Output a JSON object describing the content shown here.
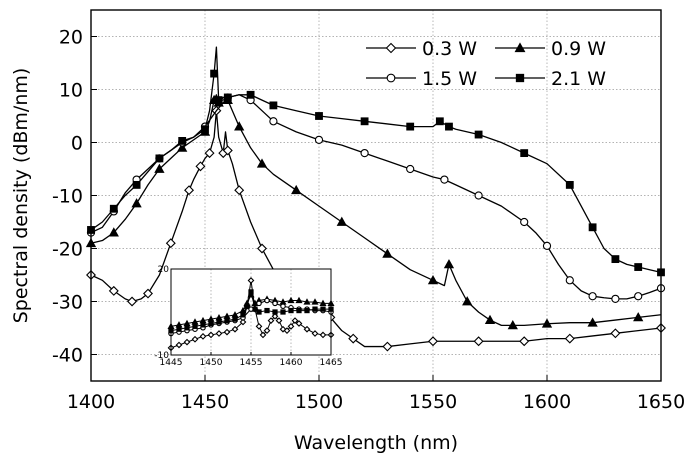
{
  "chart_data": [
    {
      "type": "line",
      "title": "",
      "xlabel": "Wavelength (nm)",
      "ylabel": "Spectral density (dBm/nm)",
      "xlim": [
        1400,
        1650
      ],
      "ylim": [
        -45,
        25
      ],
      "xticks": [
        "1400",
        "1450",
        "1500",
        "1550",
        "1600",
        "1650"
      ],
      "yticks": [
        "-40",
        "-30",
        "-20",
        "-10",
        "0",
        "10",
        "20"
      ],
      "grid": true,
      "legend": "top-right",
      "series": [
        {
          "name": "0.3 W",
          "marker": "diamond-open",
          "x": [
            1400,
            1405,
            1410,
            1415,
            1418,
            1422,
            1425,
            1430,
            1435,
            1440,
            1443,
            1445,
            1448,
            1450,
            1452,
            1454,
            1455,
            1456,
            1458,
            1459,
            1460,
            1462,
            1465,
            1470,
            1475,
            1480,
            1485,
            1490,
            1495,
            1500,
            1502,
            1503,
            1505,
            1510,
            1515,
            1520,
            1530,
            1540,
            1550,
            1560,
            1570,
            1580,
            1590,
            1600,
            1610,
            1620,
            1630,
            1640,
            1650
          ],
          "y": [
            -25,
            -26,
            -28,
            -29.5,
            -30,
            -29.5,
            -28.5,
            -25,
            -19,
            -13,
            -9,
            -7,
            -4.5,
            -3,
            -2,
            1,
            6,
            1,
            -2,
            2,
            -1.5,
            -4,
            -9,
            -15,
            -20,
            -24,
            -27,
            -29,
            -31,
            -32,
            -29.5,
            -30,
            -33,
            -35.5,
            -37,
            -38.5,
            -38.5,
            -38,
            -37.5,
            -37.5,
            -37.5,
            -37.5,
            -37.5,
            -37,
            -37,
            -36.5,
            -36,
            -35.5,
            -35
          ]
        },
        {
          "name": "0.9 W",
          "marker": "triangle-filled",
          "x": [
            1400,
            1405,
            1410,
            1415,
            1420,
            1425,
            1430,
            1435,
            1440,
            1445,
            1450,
            1452,
            1454,
            1455,
            1456,
            1458,
            1460,
            1462,
            1465,
            1470,
            1475,
            1480,
            1490,
            1500,
            1510,
            1520,
            1530,
            1540,
            1550,
            1555,
            1557,
            1560,
            1565,
            1570,
            1575,
            1580,
            1585,
            1590,
            1600,
            1610,
            1620,
            1630,
            1640,
            1650
          ],
          "y": [
            -19,
            -18.5,
            -17,
            -14.5,
            -11.5,
            -8,
            -5,
            -3,
            -1,
            0.5,
            2,
            4,
            8,
            9,
            7.5,
            8.5,
            8,
            6,
            3,
            -1,
            -4,
            -6,
            -9,
            -12,
            -15,
            -18,
            -21,
            -24,
            -26,
            -27,
            -23,
            -26,
            -30,
            -32,
            -33.5,
            -34.5,
            -34.5,
            -34.5,
            -34.2,
            -34,
            -34,
            -33.5,
            -33,
            -32.5
          ]
        },
        {
          "name": "1.5 W",
          "marker": "circle-open",
          "x": [
            1400,
            1405,
            1410,
            1415,
            1420,
            1425,
            1430,
            1435,
            1440,
            1445,
            1450,
            1455,
            1460,
            1465,
            1470,
            1475,
            1480,
            1490,
            1500,
            1510,
            1520,
            1530,
            1540,
            1550,
            1555,
            1560,
            1570,
            1580,
            1590,
            1595,
            1600,
            1605,
            1610,
            1615,
            1620,
            1625,
            1630,
            1635,
            1640,
            1645,
            1650
          ],
          "y": [
            -17,
            -16,
            -13,
            -9.5,
            -7,
            -5,
            -3,
            -1.5,
            0,
            1,
            3,
            6,
            8.5,
            9,
            8,
            6,
            4,
            2,
            0.5,
            -0.5,
            -2,
            -3.5,
            -5,
            -6.5,
            -7,
            -8,
            -10,
            -12,
            -15,
            -17,
            -19.5,
            -23,
            -26,
            -28,
            -29,
            -29.3,
            -29.5,
            -29.5,
            -29,
            -28.3,
            -27.5
          ]
        },
        {
          "name": "2.1 W",
          "marker": "square-filled",
          "x": [
            1400,
            1405,
            1410,
            1415,
            1420,
            1425,
            1430,
            1435,
            1440,
            1445,
            1450,
            1452,
            1454,
            1455,
            1456,
            1458,
            1460,
            1465,
            1470,
            1475,
            1480,
            1490,
            1500,
            1510,
            1520,
            1530,
            1540,
            1550,
            1553,
            1555,
            1557,
            1560,
            1570,
            1580,
            1590,
            1600,
            1610,
            1615,
            1620,
            1625,
            1630,
            1635,
            1640,
            1645,
            1650
          ],
          "y": [
            -16.5,
            -15,
            -12.5,
            -10,
            -8,
            -5.5,
            -3,
            -1.5,
            0.3,
            1,
            2.5,
            6,
            13,
            18,
            8,
            8,
            8.5,
            9,
            9,
            8,
            7,
            6,
            5,
            4.5,
            4,
            3.5,
            3,
            3,
            4,
            3.5,
            3,
            2.5,
            1.5,
            0,
            -2,
            -4,
            -8,
            -12,
            -16,
            -20,
            -22,
            -23,
            -23.5,
            -24,
            -24.5
          ]
        }
      ]
    },
    {
      "type": "line",
      "title": "",
      "xlim": [
        1445,
        1465
      ],
      "ylim": [
        -10,
        20
      ],
      "xticks": [
        "1445",
        "1450",
        "1455",
        "1460",
        "1465"
      ],
      "yticks": [
        "-10",
        "20"
      ],
      "grid": true,
      "series": [
        {
          "marker": "diamond-open",
          "x": [
            1445,
            1446,
            1447,
            1448,
            1449,
            1450,
            1451,
            1452,
            1453,
            1454,
            1454.5,
            1455,
            1455.5,
            1456,
            1456.5,
            1457,
            1457.5,
            1458,
            1458.5,
            1459,
            1459.5,
            1460,
            1460.5,
            1461,
            1462,
            1463,
            1464,
            1465
          ],
          "y": [
            -7.5,
            -6.5,
            -5.5,
            -4.5,
            -3.5,
            -3,
            -2.5,
            -2,
            -1,
            1.5,
            7,
            16,
            6,
            0,
            -3,
            -1.5,
            2,
            3.5,
            2,
            -1,
            -1.5,
            0,
            2,
            1,
            -1,
            -2.5,
            -3,
            -3
          ]
        },
        {
          "marker": "triangle-filled",
          "x": [
            1445,
            1446,
            1447,
            1448,
            1449,
            1450,
            1451,
            1452,
            1453,
            1454,
            1454.5,
            1455,
            1455.5,
            1456,
            1457,
            1458,
            1459,
            1460,
            1461,
            1462,
            1463,
            1464,
            1465
          ],
          "y": [
            0,
            0.5,
            1,
            1.5,
            2,
            2.5,
            3,
            3.5,
            4,
            5.5,
            8,
            11,
            8,
            9,
            9.5,
            9,
            8.5,
            9,
            9,
            8.5,
            8.5,
            8,
            8
          ]
        },
        {
          "marker": "circle-open",
          "x": [
            1445,
            1446,
            1447,
            1448,
            1449,
            1450,
            1451,
            1452,
            1453,
            1454,
            1455,
            1456,
            1457,
            1458,
            1459,
            1460,
            1461,
            1462,
            1463,
            1464,
            1465
          ],
          "y": [
            -2.5,
            -2,
            -1.5,
            -1,
            -0.5,
            0.5,
            1,
            1.5,
            2,
            3,
            6,
            8,
            9,
            8,
            7,
            6.5,
            6,
            6,
            5.5,
            5.5,
            5
          ]
        },
        {
          "marker": "square-filled",
          "x": [
            1445,
            1446,
            1447,
            1448,
            1449,
            1450,
            1451,
            1452,
            1453,
            1454,
            1454.5,
            1455,
            1455.5,
            1456,
            1457,
            1458,
            1459,
            1460,
            1461,
            1462,
            1463,
            1464,
            1465
          ],
          "y": [
            -1.5,
            -1,
            -0.5,
            0,
            0.5,
            1,
            1.5,
            2,
            2.5,
            4,
            7,
            12,
            6,
            5,
            5.5,
            5,
            5,
            5.5,
            5.5,
            5.5,
            6,
            6,
            6
          ]
        }
      ]
    }
  ]
}
